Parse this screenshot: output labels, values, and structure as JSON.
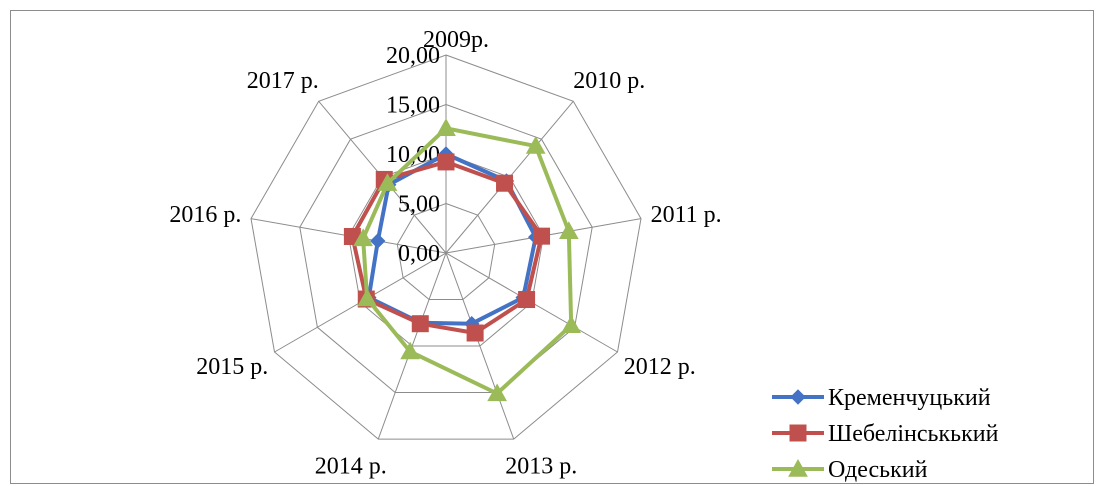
{
  "chart_data": {
    "type": "radar",
    "title": "",
    "categories": [
      "2009р.",
      "2010 р.",
      "2011 р.",
      "2012 р.",
      "2013 р.",
      "2014 р.",
      "2015 р.",
      "2016 р.",
      "2017 р."
    ],
    "tick_labels": [
      "0,00",
      "5,00",
      "10,00",
      "15,00",
      "20,00"
    ],
    "rmax": 20,
    "grid": true,
    "legend_position": "bottom-right",
    "series": [
      {
        "name": "Кременчуцький",
        "values": [
          10.0,
          9.5,
          9.2,
          9.0,
          7.6,
          7.5,
          9.0,
          7.0,
          9.0
        ],
        "color": "#4472C4",
        "marker": "diamond"
      },
      {
        "name": "Шебелінськький",
        "values": [
          9.2,
          9.2,
          9.8,
          9.4,
          8.6,
          7.6,
          9.3,
          9.6,
          9.7
        ],
        "color": "#C0504D",
        "marker": "square"
      },
      {
        "name": "Одеський",
        "values": [
          12.6,
          14.1,
          12.6,
          14.6,
          15.1,
          10.6,
          9.2,
          8.5,
          9.2
        ],
        "color": "#9BBB59",
        "marker": "triangle"
      }
    ]
  }
}
